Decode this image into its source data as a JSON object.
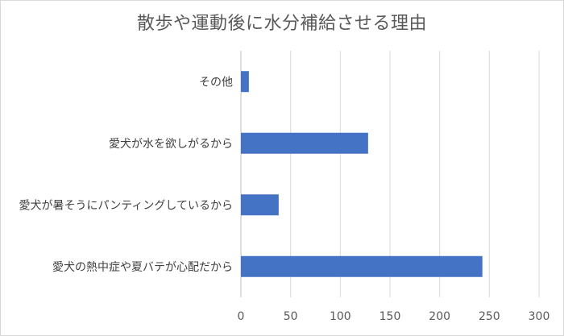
{
  "chart_data": {
    "type": "bar",
    "orientation": "horizontal",
    "title": "散歩や運動後に水分補給させる理由",
    "xlabel": "",
    "ylabel": "",
    "categories": [
      "その他",
      "愛犬が水を欲しがるから",
      "愛犬が暑そうにパンティングしているから",
      "愛犬の熱中症や夏バテが心配だから"
    ],
    "values": [
      8,
      128,
      38,
      243
    ],
    "xlim": [
      0,
      300
    ],
    "xticks": [
      0,
      50,
      100,
      150,
      200,
      250,
      300
    ],
    "grid": true,
    "bar_color": "#4472C4",
    "grid_color": "#d9d9d9",
    "axis_color": "#bfbfbf"
  }
}
